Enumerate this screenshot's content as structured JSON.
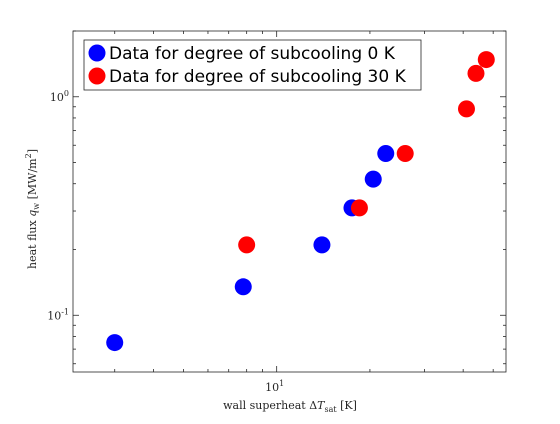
{
  "chart_data": {
    "type": "scatter",
    "title": "",
    "xlabel": "wall superheat ΔT_sat [K]",
    "ylabel": "heat flux q_w [MW/m^2]",
    "xscale": "log",
    "yscale": "log",
    "xlim": [
      2.2,
      55
    ],
    "ylim": [
      0.055,
      2.0
    ],
    "x_tick_labels": [
      "10^1"
    ],
    "y_tick_labels": [
      "10^-1",
      "10^0"
    ],
    "grid": false,
    "legend_position": "top-left",
    "series": [
      {
        "name": "Data for degree of subcooling 0 K",
        "color": "#0000ff",
        "points": [
          {
            "x": 3.0,
            "y": 0.075
          },
          {
            "x": 7.8,
            "y": 0.135
          },
          {
            "x": 14.0,
            "y": 0.21
          },
          {
            "x": 17.5,
            "y": 0.31
          },
          {
            "x": 20.5,
            "y": 0.42
          },
          {
            "x": 22.5,
            "y": 0.55
          }
        ]
      },
      {
        "name": "Data for degree of subcooling 30 K",
        "color": "#ff0000",
        "points": [
          {
            "x": 8.0,
            "y": 0.21
          },
          {
            "x": 18.5,
            "y": 0.31
          },
          {
            "x": 26.0,
            "y": 0.55
          },
          {
            "x": 41.0,
            "y": 0.88
          },
          {
            "x": 44.0,
            "y": 1.28
          },
          {
            "x": 47.5,
            "y": 1.48
          }
        ]
      }
    ]
  }
}
